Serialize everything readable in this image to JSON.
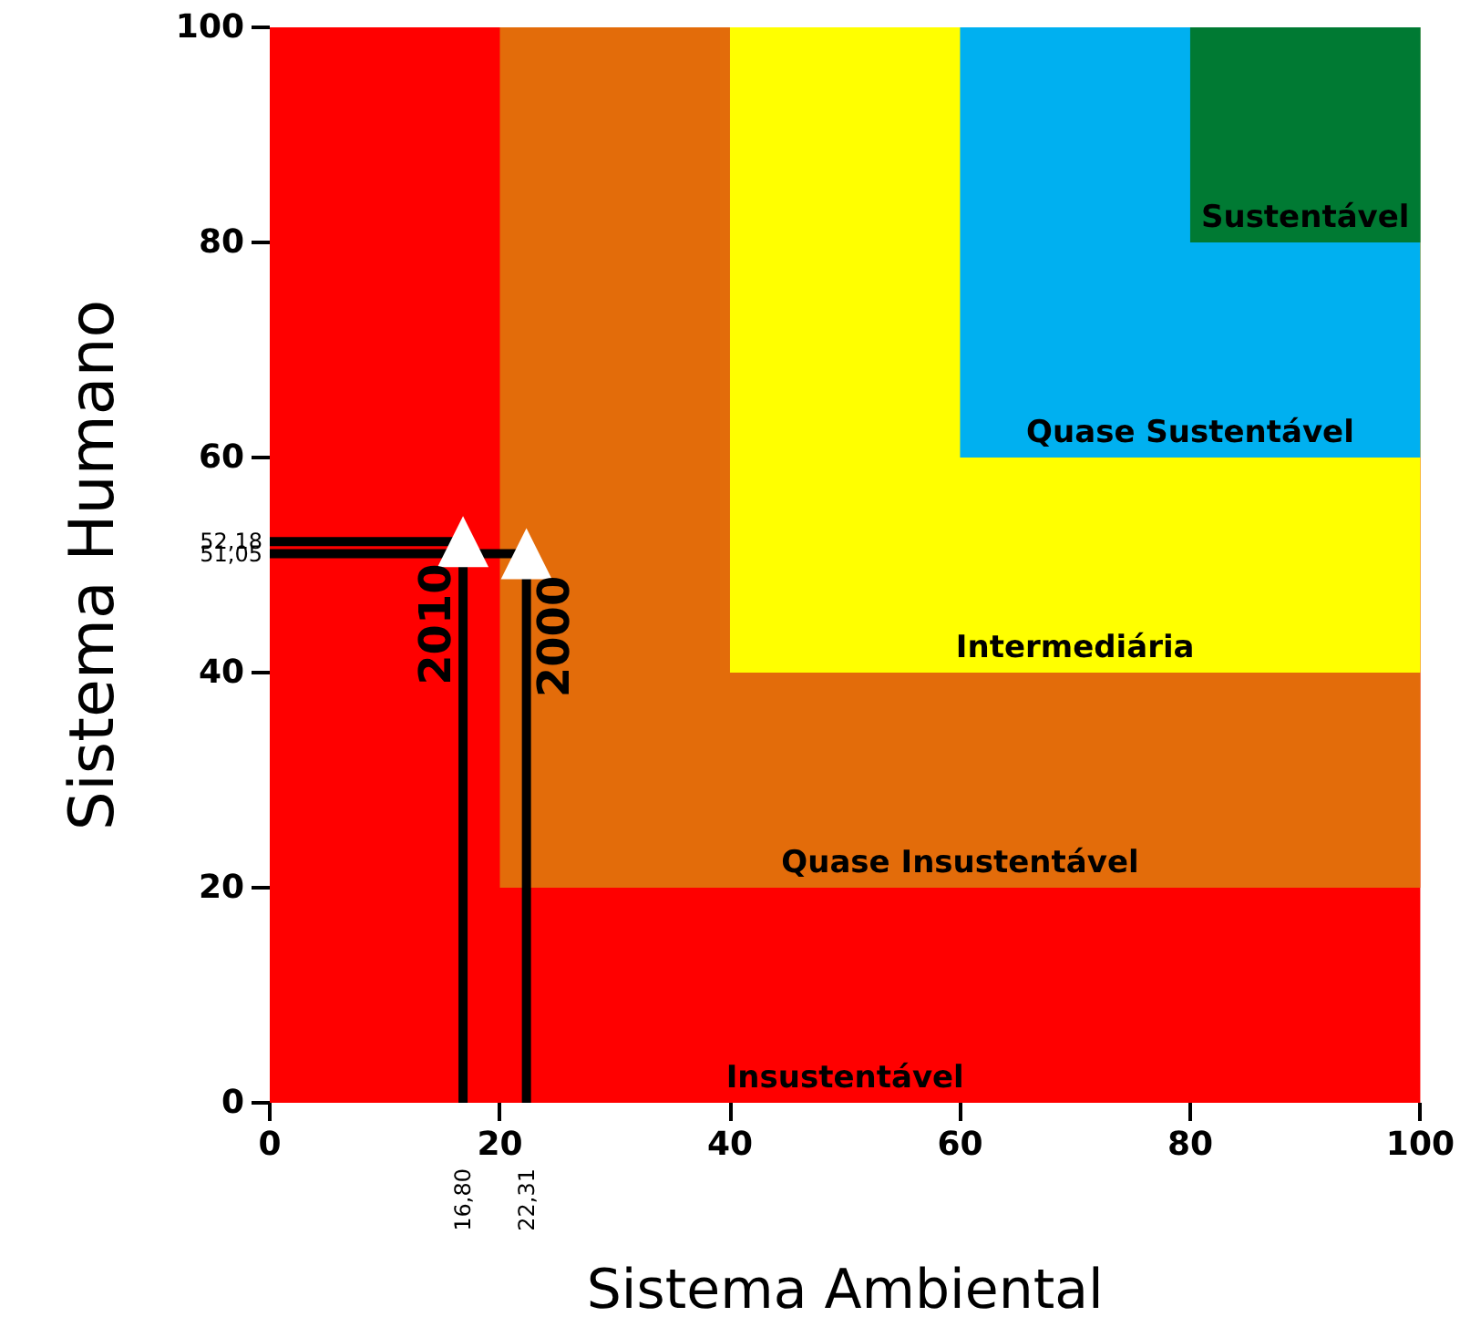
{
  "chart_data": {
    "type": "scatter",
    "xlabel": "Sistema Ambiental",
    "ylabel": "Sistema Humano",
    "series": [
      {
        "name": "2010",
        "color": "#ffffff",
        "x": [
          16.8
        ],
        "values": [
          52.18
        ],
        "errors": [
          [
            0,
            52.18
          ]
        ],
        "xerrors": [
          [
            0,
            16.8
          ]
        ]
      },
      {
        "name": "2000",
        "color": "#ffffff",
        "x": [
          22.31
        ],
        "values": [
          51.05
        ],
        "errors": [
          [
            0,
            51.05
          ]
        ],
        "xerrors": [
          [
            0,
            22.31
          ]
        ]
      }
    ],
    "marker": "triangle",
    "xlim": [
      0,
      100
    ],
    "ylim": [
      0,
      100
    ],
    "xticks": [
      0,
      20,
      40,
      60,
      80,
      100
    ],
    "yticks": [
      0,
      20,
      40,
      60,
      80,
      100
    ],
    "grid": false,
    "legend": false,
    "bands": [
      {
        "axis": "x",
        "from": 0,
        "to": 100,
        "label": "Insustentável",
        "color": "#ff0000"
      },
      {
        "axis": "x",
        "from": 20,
        "to": 100,
        "label": "Quase Insustentável",
        "color": "#e36c0a"
      },
      {
        "axis": "x",
        "from": 40,
        "to": 100,
        "label": "Intermediária",
        "color": "#ffff00"
      },
      {
        "axis": "x",
        "from": 60,
        "to": 100,
        "label": "Quase Sustentável",
        "color": "#00b0f0"
      },
      {
        "axis": "x",
        "from": 80,
        "to": 100,
        "label": "Sustentável",
        "color": "#007a33"
      }
    ],
    "annotations": [
      {
        "text": "16,80",
        "x": 16.8,
        "y": 0
      },
      {
        "text": "22,31",
        "x": 22.31,
        "y": 0
      },
      {
        "text": "52,18",
        "x": 0,
        "y": 52.18
      },
      {
        "text": "51,05",
        "x": 0,
        "y": 51.05
      }
    ]
  }
}
